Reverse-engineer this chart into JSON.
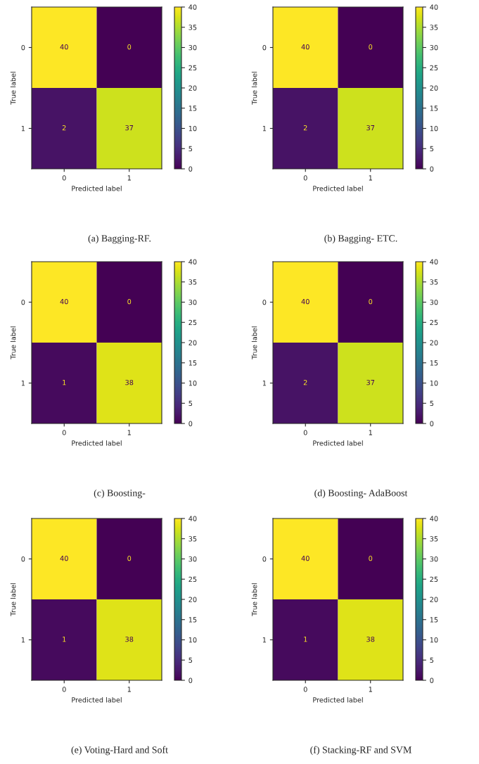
{
  "chart_data": [
    {
      "type": "heatmap",
      "title": "(a) Bagging-RF.",
      "xlabel": "Predicted label",
      "ylabel": "True label",
      "categories": [
        "0",
        "1"
      ],
      "y_categories": [
        "0",
        "1"
      ],
      "cells": [
        [
          40,
          0
        ],
        [
          2,
          37
        ]
      ],
      "clim": [
        0,
        40
      ],
      "cticks": [
        0,
        5,
        10,
        15,
        20,
        25,
        30,
        35,
        40
      ],
      "data_labels": true
    },
    {
      "type": "heatmap",
      "title": "(b) Bagging- ETC.",
      "xlabel": "Predicted label",
      "ylabel": "True label",
      "categories": [
        "0",
        "1"
      ],
      "y_categories": [
        "0",
        "1"
      ],
      "cells": [
        [
          40,
          0
        ],
        [
          2,
          37
        ]
      ],
      "clim": [
        0,
        40
      ],
      "cticks": [
        0,
        5,
        10,
        15,
        20,
        25,
        30,
        35,
        40
      ],
      "data_labels": true
    },
    {
      "type": "heatmap",
      "title": "(c) Boosting-",
      "xlabel": "Predicted label",
      "ylabel": "True label",
      "categories": [
        "0",
        "1"
      ],
      "y_categories": [
        "0",
        "1"
      ],
      "cells": [
        [
          40,
          0
        ],
        [
          1,
          38
        ]
      ],
      "clim": [
        0,
        40
      ],
      "cticks": [
        0,
        5,
        10,
        15,
        20,
        25,
        30,
        35,
        40
      ],
      "data_labels": true
    },
    {
      "type": "heatmap",
      "title": "(d) Boosting- AdaBoost",
      "xlabel": "Predicted label",
      "ylabel": "True label",
      "categories": [
        "0",
        "1"
      ],
      "y_categories": [
        "0",
        "1"
      ],
      "cells": [
        [
          40,
          0
        ],
        [
          2,
          37
        ]
      ],
      "clim": [
        0,
        40
      ],
      "cticks": [
        0,
        5,
        10,
        15,
        20,
        25,
        30,
        35,
        40
      ],
      "data_labels": true
    },
    {
      "type": "heatmap",
      "title": "(e) Voting-Hard and Soft",
      "xlabel": "Predicted label",
      "ylabel": "True label",
      "categories": [
        "0",
        "1"
      ],
      "y_categories": [
        "0",
        "1"
      ],
      "cells": [
        [
          40,
          0
        ],
        [
          1,
          38
        ]
      ],
      "clim": [
        0,
        40
      ],
      "cticks": [
        0,
        5,
        10,
        15,
        20,
        25,
        30,
        35,
        40
      ],
      "data_labels": true
    },
    {
      "type": "heatmap",
      "title": "(f) Stacking-RF and SVM",
      "xlabel": "Predicted label",
      "ylabel": "True label",
      "categories": [
        "0",
        "1"
      ],
      "y_categories": [
        "0",
        "1"
      ],
      "cells": [
        [
          40,
          0
        ],
        [
          1,
          38
        ]
      ],
      "clim": [
        0,
        40
      ],
      "cticks": [
        0,
        5,
        10,
        15,
        20,
        25,
        30,
        35,
        40
      ],
      "data_labels": true
    }
  ]
}
